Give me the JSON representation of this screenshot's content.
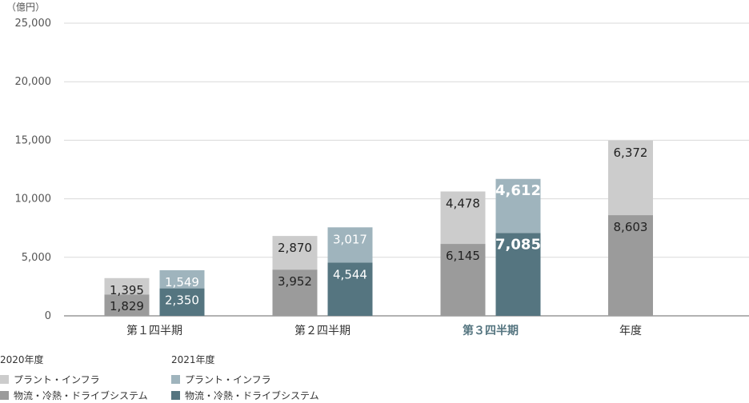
{
  "unit_label": "（億円）",
  "colors": {
    "y2020_plant": "#cccccc",
    "y2020_logistics": "#9b9b9b",
    "y2021_plant": "#9fb4bd",
    "y2021_logistics": "#557580",
    "highlight_text": "#557580",
    "grid": "#d9d9d9",
    "axis": "#666666"
  },
  "chart_data": {
    "type": "bar",
    "stacked": true,
    "unit": "億円",
    "ylim": [
      0,
      25000
    ],
    "yticks": [
      "0",
      "5,000",
      "10,000",
      "15,000",
      "20,000",
      "25,000"
    ],
    "ytick_values": [
      0,
      5000,
      10000,
      15000,
      20000,
      25000
    ],
    "categories": [
      "第１四半期",
      "第２四半期",
      "第３四半期",
      "年度"
    ],
    "highlight_category": "第３四半期",
    "groups": [
      {
        "name": "2020年度",
        "series": [
          {
            "name": "物流・冷熱・ドライブシステム",
            "values": [
              1829,
              3952,
              6145,
              8603
            ],
            "labels": [
              "1,829",
              "3,952",
              "6,145",
              "8,603"
            ]
          },
          {
            "name": "プラント・インフラ",
            "values": [
              1395,
              2870,
              4478,
              6372
            ],
            "labels": [
              "1,395",
              "2,870",
              "4,478",
              "6,372"
            ]
          }
        ]
      },
      {
        "name": "2021年度",
        "series": [
          {
            "name": "物流・冷熱・ドライブシステム",
            "values": [
              2350,
              4544,
              7085,
              null
            ],
            "labels": [
              "2,350",
              "4,544",
              "7,085",
              ""
            ]
          },
          {
            "name": "プラント・インフラ",
            "values": [
              1549,
              3017,
              4612,
              null
            ],
            "labels": [
              "1,549",
              "3,017",
              "4,612",
              ""
            ]
          }
        ]
      }
    ],
    "grid": true,
    "legend_position": "bottom-left"
  },
  "legend": {
    "groups": [
      {
        "title": "2020年度",
        "items": [
          {
            "label": "プラント・インフラ",
            "color_key": "y2020_plant"
          },
          {
            "label": "物流・冷熱・ドライブシステム",
            "color_key": "y2020_logistics"
          }
        ]
      },
      {
        "title": "2021年度",
        "items": [
          {
            "label": "プラント・インフラ",
            "color_key": "y2021_plant"
          },
          {
            "label": "物流・冷熱・ドライブシステム",
            "color_key": "y2021_logistics"
          }
        ]
      }
    ]
  }
}
